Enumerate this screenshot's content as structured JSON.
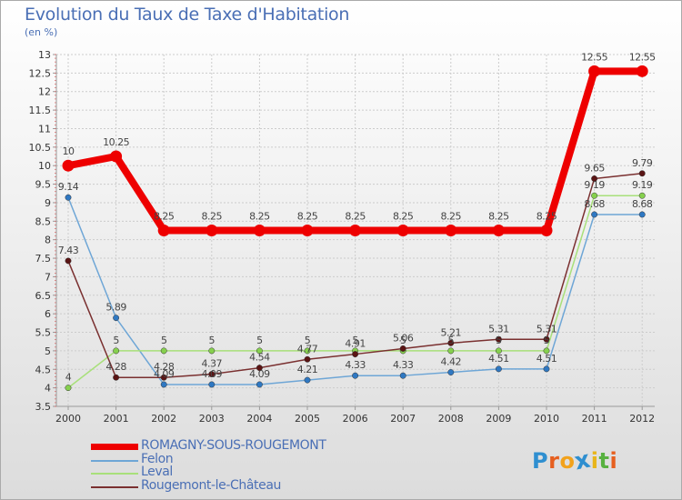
{
  "title": "Evolution du Taux de Taxe d'Habitation",
  "unit_label": "(en %)",
  "logo": {
    "letters": [
      "P",
      "r",
      "o",
      "x",
      "i",
      "t",
      "i"
    ],
    "colors": [
      "#2f8fd0",
      "#e65f1f",
      "#f2a21c",
      "#2f8fd0",
      "#e8b51a",
      "#58b140",
      "#e65f1f"
    ]
  },
  "colors": {
    "background_top": "#ffffff",
    "background_bottom": "#dcdcdc",
    "grid": "#cccccc",
    "tick_text": "#333333",
    "label_text": "#444444"
  },
  "chart_data": {
    "type": "line",
    "title": "Evolution du Taux de Taxe d'Habitation",
    "ylabel": "(en %)",
    "categories": [
      "2000",
      "2001",
      "2002",
      "2003",
      "2004",
      "2005",
      "2006",
      "2007",
      "2008",
      "2009",
      "2010",
      "2011",
      "2012"
    ],
    "ylim": [
      3.5,
      13
    ],
    "yticks": [
      "3.5",
      "4",
      "4.5",
      "5",
      "5.5",
      "6",
      "6.5",
      "7",
      "7.5",
      "8",
      "8.5",
      "9",
      "9.5",
      "10",
      "10.5",
      "11",
      "11.5",
      "12",
      "12.5",
      "13"
    ],
    "grid": true,
    "legend_position": "bottom-left",
    "series": [
      {
        "name": "Felon",
        "color": "#6ea6d6",
        "marker": "#2f78c2",
        "thick": false,
        "values": [
          9.14,
          5.89,
          4.09,
          4.09,
          4.09,
          4.21,
          4.33,
          4.33,
          4.42,
          4.51,
          4.51,
          8.68,
          8.68
        ],
        "labels": [
          "9.14",
          "5.89",
          "4.09",
          "4.09",
          "4.09",
          "4.21",
          "4.33",
          "4.33",
          "4.42",
          "4.51",
          "4.51",
          "8.68",
          "8.68"
        ]
      },
      {
        "name": "Leval",
        "color": "#a8e07a",
        "marker": "#86d04e",
        "thick": false,
        "values": [
          4,
          5,
          5,
          5,
          5,
          5,
          5,
          5,
          5,
          5,
          5,
          9.19,
          9.19
        ],
        "labels": [
          "4",
          "5",
          "5",
          "5",
          "5",
          "5",
          "5",
          "5",
          "5",
          "5",
          "5",
          "9.19",
          "9.19"
        ]
      },
      {
        "name": "Rougemont-le-Château",
        "color": "#7a3030",
        "marker": "#5a1414",
        "thick": false,
        "values": [
          7.43,
          4.28,
          4.28,
          4.37,
          4.54,
          4.77,
          4.91,
          5.06,
          5.21,
          5.31,
          5.31,
          9.65,
          9.79
        ],
        "labels": [
          "7.43",
          "4.28",
          "4.28",
          "4.37",
          "4.54",
          "4.77",
          "4.91",
          "5.06",
          "5.21",
          "5.31",
          "5.31",
          "9.65",
          "9.79"
        ]
      },
      {
        "name": "ROMAGNY-SOUS-ROUGEMONT",
        "color": "#ee0000",
        "marker": "#ee0000",
        "thick": true,
        "values": [
          10,
          10.25,
          8.25,
          8.25,
          8.25,
          8.25,
          8.25,
          8.25,
          8.25,
          8.25,
          8.25,
          12.55,
          12.55
        ],
        "labels": [
          "10",
          "10.25",
          "8.25",
          "8.25",
          "8.25",
          "8.25",
          "8.25",
          "8.25",
          "8.25",
          "8.25",
          "8.25",
          "12.55",
          "12.55"
        ]
      }
    ],
    "legend": [
      "ROMAGNY-SOUS-ROUGEMONT",
      "Felon",
      "Leval",
      "Rougemont-le-Château"
    ]
  }
}
